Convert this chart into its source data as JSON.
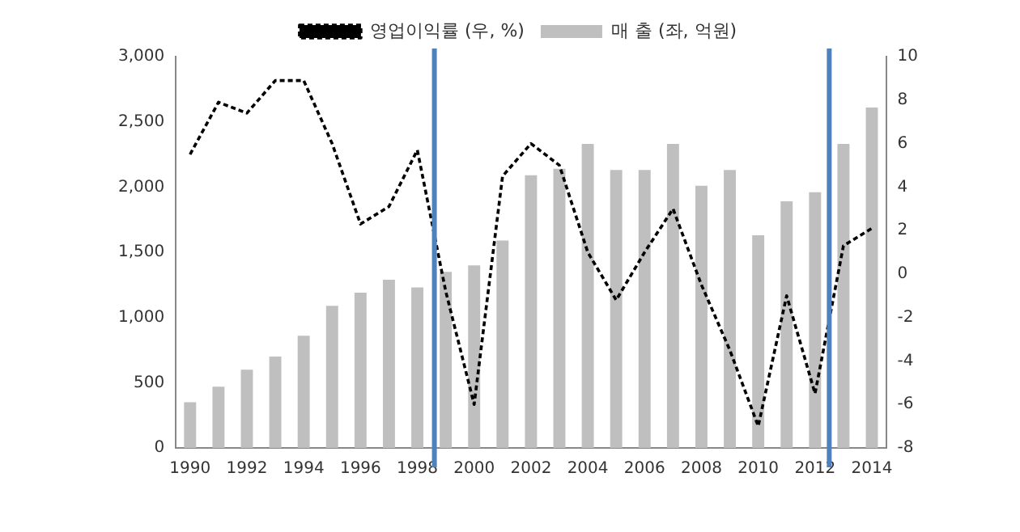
{
  "chart_data": {
    "type": "bar",
    "x": [
      1990,
      1991,
      1992,
      1993,
      1994,
      1995,
      1996,
      1997,
      1998,
      1999,
      2000,
      2001,
      2002,
      2003,
      2004,
      2005,
      2006,
      2007,
      2008,
      2009,
      2010,
      2011,
      2012,
      2013,
      2014
    ],
    "xlim": [
      1989.5,
      2014.5
    ],
    "xticks": [
      1990,
      1992,
      1994,
      1996,
      1998,
      2000,
      2002,
      2004,
      2006,
      2008,
      2010,
      2012,
      2014
    ],
    "ylim": [
      0,
      3000
    ],
    "yticks": [
      {
        "value": 0,
        "label": "0"
      },
      {
        "value": 500,
        "label": "500"
      },
      {
        "value": 1000,
        "label": "1,000"
      },
      {
        "value": 1500,
        "label": "1,500"
      },
      {
        "value": 2000,
        "label": "2,000"
      },
      {
        "value": 2500,
        "label": "2,500"
      },
      {
        "value": 3000,
        "label": "3,000"
      }
    ],
    "y2lim": [
      -8,
      10
    ],
    "y2ticks": [
      -8,
      -6,
      -4,
      -2,
      0,
      2,
      4,
      6,
      8,
      10
    ],
    "series": [
      {
        "name": "매 출 (좌, 억원)",
        "color": "#bfbfbf",
        "values": [
          350,
          470,
          600,
          700,
          860,
          1090,
          1190,
          1290,
          1230,
          1350,
          1400,
          1590,
          2090,
          2140,
          2330,
          2130,
          2130,
          2330,
          2010,
          2130,
          1630,
          1890,
          1960,
          2330,
          2610
        ]
      },
      {
        "name": "영업이익률 (우, %)",
        "type": "line",
        "axis": "y2",
        "color": "#000000",
        "line_style": "dashed",
        "marker": "none",
        "values": [
          5.5,
          7.9,
          7.4,
          8.9,
          8.9,
          6.0,
          2.3,
          3.1,
          5.7,
          -0.8,
          -6.0,
          4.5,
          6.0,
          5.0,
          1.0,
          -1.2,
          1.0,
          3.0,
          -0.5,
          -3.5,
          -7.0,
          -1.0,
          -5.5,
          1.3,
          2.1
        ]
      }
    ],
    "ref_lines": [
      {
        "axis": "x",
        "value": 1998.6,
        "color": "#4f81bd"
      },
      {
        "axis": "x",
        "value": 2012.5,
        "color": "#4f81bd"
      }
    ],
    "legend": "top",
    "grid": false
  }
}
